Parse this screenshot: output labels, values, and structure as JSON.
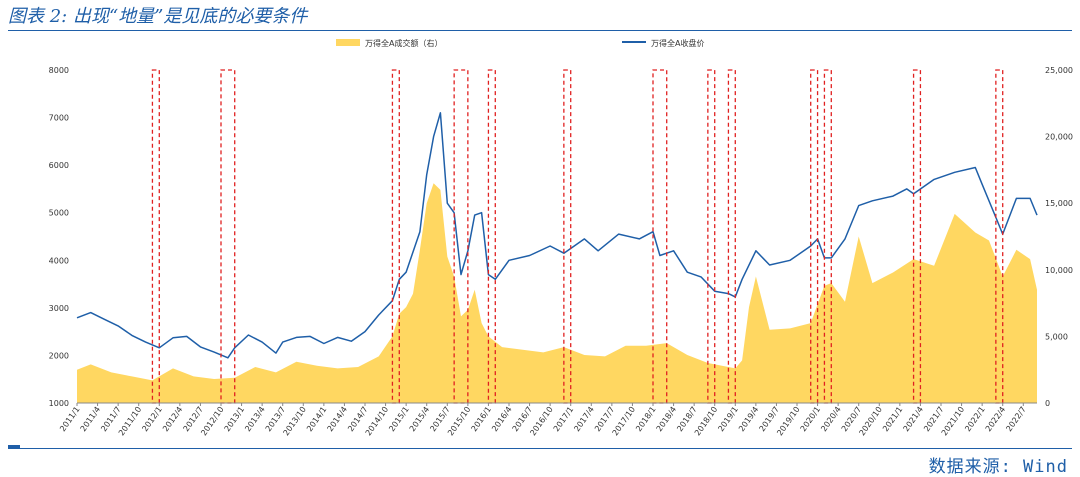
{
  "header": {
    "title": "图表 2: 出现“地量”是见底的必要条件"
  },
  "footer": {
    "source": "数据来源: Wind"
  },
  "chart_data": {
    "type": "line+area",
    "title": "",
    "series": [
      {
        "name": "万得全A成交额（右）",
        "kind": "area",
        "axis": "right",
        "color": "#ffd761",
        "x": [
          "2011-01",
          "2011-03",
          "2011-06",
          "2011-09",
          "2011-12",
          "2012-03",
          "2012-06",
          "2012-09",
          "2012-12",
          "2013-03",
          "2013-06",
          "2013-09",
          "2013-12",
          "2014-03",
          "2014-06",
          "2014-09",
          "2014-11",
          "2014-12",
          "2015-01",
          "2015-02",
          "2015-03",
          "2015-04",
          "2015-05",
          "2015-06",
          "2015-07",
          "2015-08",
          "2015-09",
          "2015-10",
          "2015-11",
          "2015-12",
          "2016-01",
          "2016-03",
          "2016-06",
          "2016-09",
          "2016-12",
          "2017-03",
          "2017-06",
          "2017-09",
          "2017-12",
          "2018-03",
          "2018-06",
          "2018-09",
          "2018-12",
          "2019-01",
          "2019-02",
          "2019-03",
          "2019-04",
          "2019-06",
          "2019-09",
          "2019-12",
          "2020-02",
          "2020-03",
          "2020-05",
          "2020-07",
          "2020-09",
          "2020-12",
          "2021-03",
          "2021-06",
          "2021-09",
          "2021-12",
          "2022-02",
          "2022-04",
          "2022-06",
          "2022-08",
          "2022-09"
        ],
        "values": [
          2500,
          2900,
          2300,
          2000,
          1700,
          2600,
          2000,
          1800,
          1900,
          2700,
          2300,
          3100,
          2800,
          2600,
          2700,
          3500,
          5000,
          6700,
          7200,
          8200,
          11500,
          15000,
          16500,
          16000,
          11000,
          9500,
          6500,
          7000,
          8500,
          6000,
          5000,
          4200,
          4000,
          3800,
          4200,
          3600,
          3500,
          4300,
          4300,
          4500,
          3600,
          3000,
          2700,
          2600,
          3200,
          7200,
          9500,
          5500,
          5600,
          6000,
          8800,
          9000,
          7600,
          12500,
          9000,
          9800,
          10800,
          10300,
          14200,
          12800,
          12200,
          9500,
          11500,
          10800,
          8500
        ]
      },
      {
        "name": "万得全A收盘价",
        "kind": "line",
        "axis": "left",
        "color": "#1f5fa8",
        "x": [
          "2011-01",
          "2011-03",
          "2011-05",
          "2011-07",
          "2011-09",
          "2011-11",
          "2012-01",
          "2012-03",
          "2012-05",
          "2012-07",
          "2012-09",
          "2012-11",
          "2012-12",
          "2013-02",
          "2013-04",
          "2013-06",
          "2013-07",
          "2013-09",
          "2013-11",
          "2014-01",
          "2014-03",
          "2014-05",
          "2014-07",
          "2014-09",
          "2014-11",
          "2014-12",
          "2015-01",
          "2015-03",
          "2015-04",
          "2015-05",
          "2015-06",
          "2015-07",
          "2015-08",
          "2015-09",
          "2015-10",
          "2015-11",
          "2015-12",
          "2016-01",
          "2016-02",
          "2016-04",
          "2016-07",
          "2016-10",
          "2016-12",
          "2017-03",
          "2017-05",
          "2017-08",
          "2017-11",
          "2018-01",
          "2018-02",
          "2018-04",
          "2018-06",
          "2018-08",
          "2018-10",
          "2018-12",
          "2019-01",
          "2019-02",
          "2019-04",
          "2019-06",
          "2019-09",
          "2019-12",
          "2020-01",
          "2020-02",
          "2020-03",
          "2020-05",
          "2020-07",
          "2020-09",
          "2020-12",
          "2021-02",
          "2021-03",
          "2021-06",
          "2021-09",
          "2021-12",
          "2022-01",
          "2022-03",
          "2022-04",
          "2022-06",
          "2022-08",
          "2022-09"
        ],
        "values": [
          2790,
          2900,
          2760,
          2620,
          2420,
          2280,
          2160,
          2370,
          2400,
          2180,
          2070,
          1950,
          2160,
          2430,
          2280,
          2050,
          2280,
          2380,
          2400,
          2250,
          2380,
          2300,
          2500,
          2850,
          3150,
          3600,
          3750,
          4600,
          5800,
          6600,
          7100,
          5200,
          5000,
          3700,
          4200,
          4950,
          5000,
          3700,
          3600,
          4000,
          4100,
          4300,
          4150,
          4450,
          4200,
          4550,
          4450,
          4600,
          4100,
          4200,
          3750,
          3650,
          3350,
          3300,
          3230,
          3600,
          4200,
          3900,
          4000,
          4300,
          4450,
          4050,
          4050,
          4450,
          5150,
          5250,
          5350,
          5500,
          5400,
          5700,
          5850,
          5950,
          5600,
          4900,
          4550,
          5300,
          5300,
          4950
        ]
      }
    ],
    "yaxis_left": {
      "min": 1000,
      "max": 8000,
      "ticks": [
        1000,
        2000,
        3000,
        4000,
        5000,
        6000,
        7000,
        8000
      ]
    },
    "yaxis_right": {
      "min": 0,
      "max": 25000,
      "ticks": [
        "0",
        "5,000",
        "10,000",
        "15,000",
        "20,000",
        "25,000"
      ]
    },
    "x_tick_labels": [
      "2011/1",
      "2011/4",
      "2011/7",
      "2011/10",
      "2012/1",
      "2012/4",
      "2012/7",
      "2012/10",
      "2013/1",
      "2013/4",
      "2013/7",
      "2013/10",
      "2014/1",
      "2014/4",
      "2014/7",
      "2014/10",
      "2015/1",
      "2015/4",
      "2015/7",
      "2015/10",
      "2016/1",
      "2016/4",
      "2016/7",
      "2016/10",
      "2017/1",
      "2017/4",
      "2017/7",
      "2017/10",
      "2018/1",
      "2018/4",
      "2018/7",
      "2018/10",
      "2019/1",
      "2019/4",
      "2019/7",
      "2019/10",
      "2020/1",
      "2020/4",
      "2020/7",
      "2020/10",
      "2021/1",
      "2021/4",
      "2021/7",
      "2021/10",
      "2022/1",
      "2022/4",
      "2022/7"
    ],
    "highlight_windows": [
      [
        "2011-12",
        "2012-01"
      ],
      [
        "2012-10",
        "2012-12"
      ],
      [
        "2014-11",
        "2014-12"
      ],
      [
        "2015-08",
        "2015-10"
      ],
      [
        "2016-01",
        "2016-02"
      ],
      [
        "2016-12",
        "2017-01"
      ],
      [
        "2018-01",
        "2018-03"
      ],
      [
        "2018-09",
        "2018-10"
      ],
      [
        "2018-12",
        "2019-01"
      ],
      [
        "2019-12",
        "2020-01"
      ],
      [
        "2020-02",
        "2020-03"
      ],
      [
        "2021-03",
        "2021-04"
      ],
      [
        "2022-03",
        "2022-04"
      ]
    ],
    "highlight_style": "red dashed rectangles",
    "legend_position": "top-center",
    "grid": false
  }
}
